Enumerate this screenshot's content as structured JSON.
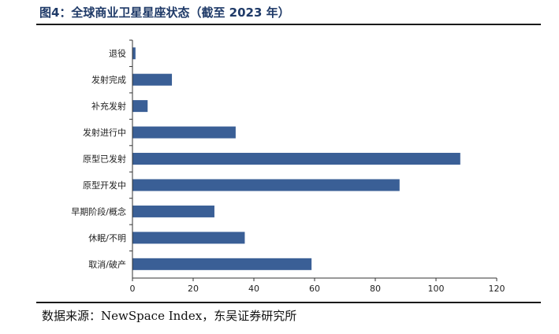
{
  "figure": {
    "title": "图4：全球商业卫星星座状态（截至 2023 年）",
    "source": "数据来源：NewSpace Index，东吴证券研究所"
  },
  "colors": {
    "bar": "#3a5f96",
    "axis": "#333333",
    "title": "#1f3a68"
  },
  "chart_data": {
    "type": "bar",
    "orientation": "horizontal",
    "categories": [
      "退役",
      "发射完成",
      "补充发射",
      "发射进行中",
      "原型已发射",
      "原型开发中",
      "早期阶段/概念",
      "休眠/不明",
      "取消/破产"
    ],
    "values": [
      1,
      13,
      5,
      34,
      108,
      88,
      27,
      37,
      59
    ],
    "xlim": [
      0,
      120
    ],
    "xticks": [
      0,
      20,
      40,
      60,
      80,
      100,
      120
    ],
    "grid": false,
    "legend": "none"
  }
}
